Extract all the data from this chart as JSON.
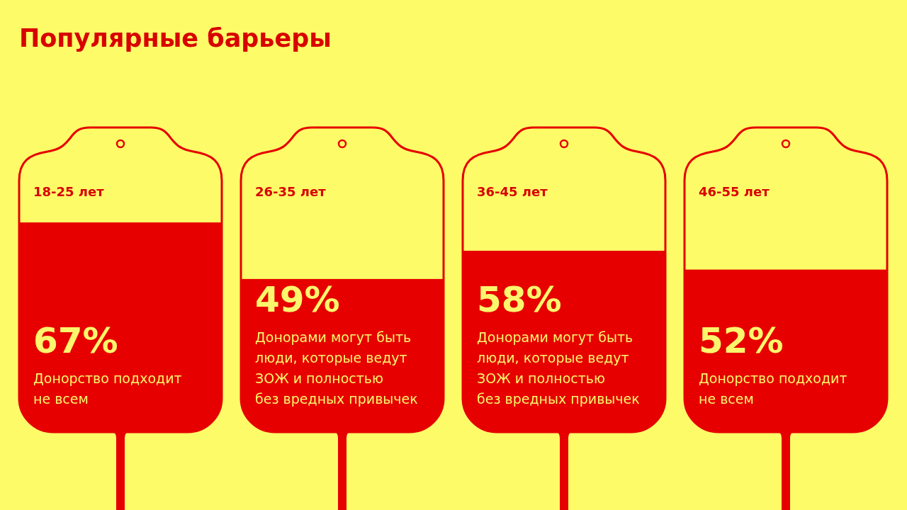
{
  "chart_data": {
    "type": "bar",
    "title": "Популярные барьеры",
    "categories": [
      "18-25 лет",
      "26-35 лет",
      "36-45 лет",
      "46-55 лет"
    ],
    "values": [
      67,
      49,
      58,
      52
    ],
    "color": "#e60000",
    "value_labels": [
      "67%",
      "49%",
      "58%",
      "52%"
    ],
    "annotations": [
      "Донорство подходит\nне всем",
      "Донорами могут быть\nлюди, которые ведут\nЗОЖ и полностью\nбез вредных привычек",
      "Донорами могут быть\nлюди, которые ведут\nЗОЖ и полностью\nбез вредных привычек",
      "Донорство подходит\nне всем"
    ],
    "tick_labels": "x"
  }
}
